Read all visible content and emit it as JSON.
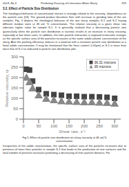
{
  "header": [
    "Vol.8, No.3",
    "Predicting Viscosity of Limestone-Water Slurry",
    "259"
  ],
  "section_title": "3.2. Effect of Particle Size Distribution",
  "body_text": "The rheological behavior of concentrated slurries is strongly related to the viscosity -dependence on the particle size [14]. The ground product becomes finer with increase in grinding time of the ore samples. Fig. 3 depicts the rheological behavior of the two slurry samples S-1 and S-2 having different median sizes at 46 vol. % concentration. The relative viscosity at a given shear rate indicates higher value for sample S-1. It is generally realized that a decreasing particle size (particularly when the particle size distribution is narrow) results in an increase in slurry viscosity, especially at low shear rates. In addition, the inter-particle interaction is exposed to become stronger as the specific surface area of the particles increases at the same solids volume concentration of the slurry. Also the packing efficiency reduces in a material with a narrower particle size distribution at a fixed solids concentration. It may be mentioned that the fines content (<10μm) in S-1 is more than twice that of S-2 as indicated in particle size distribution plot.",
  "caption": "Fig.5. Effect of particle size distribution on slurry viscosity at 46 vol.%\nconcentration.",
  "footer_text": "Irrespective of the solids concentration, the specific surface area of the particles increases due to presence of more finer particles in sample S-1 that leads to the production of new surfaces and the total number of particles increases promoting a decreasing of inter-particle distance. For",
  "chart_data": {
    "type": "scatter",
    "x_label": "Shear rate, s⁻¹",
    "y_label": "Relative viscosity, ηr",
    "xlim": [
      0,
      320
    ],
    "ylim": [
      0,
      300
    ],
    "xticks": [
      0,
      50,
      100,
      150,
      200,
      250,
      300
    ],
    "yticks": [
      0,
      50,
      100,
      150,
      200,
      250,
      300
    ],
    "grid": false,
    "legend": "upper right",
    "series": [
      {
        "name": "36.31 microns",
        "color": "#444444",
        "marker": "square",
        "x": [
          10,
          20,
          30,
          50,
          75,
          100,
          125,
          150,
          175,
          200,
          225,
          250,
          275,
          300
        ],
        "values": [
          240,
          236,
          183,
          142,
          122,
          118,
          115,
          110,
          110,
          108,
          108,
          107,
          105,
          100
        ]
      },
      {
        "name": "35 microns",
        "color": "#888888",
        "marker": "triangle",
        "x": [
          10,
          20,
          30,
          50,
          75,
          100,
          125,
          150,
          175,
          200,
          225,
          250,
          275,
          300
        ],
        "values": [
          197,
          175,
          145,
          112,
          95,
          88,
          83,
          82,
          80,
          78,
          78,
          77,
          75,
          72
        ]
      }
    ]
  }
}
